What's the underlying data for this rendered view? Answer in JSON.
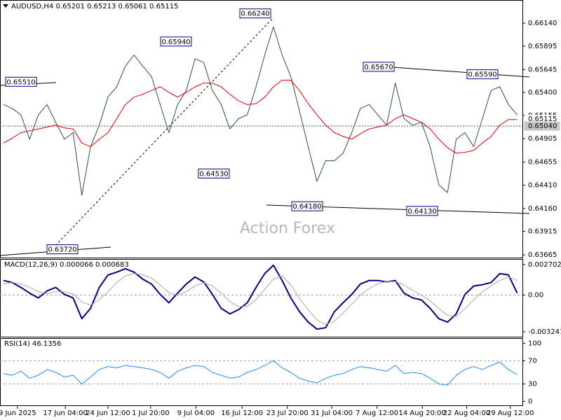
{
  "chart_data": [
    {
      "type": "line",
      "title": "AUDUSD,H4 0.65201 0.65213 0.65061 0.65115",
      "watermark": "Action Forex",
      "xlim": [
        -0.4,
        59.6
      ],
      "ylim": [
        0.63635,
        0.6638
      ],
      "yticks": [
        {
          "value": 0.6614,
          "label": "0.66140"
        },
        {
          "value": 0.65895,
          "label": "0.65895"
        },
        {
          "value": 0.65645,
          "label": "0.65645"
        },
        {
          "value": 0.654,
          "label": "0.65400"
        },
        {
          "value": 0.65155,
          "label": "0.65155"
        },
        {
          "value": 0.64905,
          "label": "0.64905"
        },
        {
          "value": 0.64655,
          "label": "0.64655"
        },
        {
          "value": 0.6441,
          "label": "0.64410"
        },
        {
          "value": 0.6416,
          "label": "0.64160"
        },
        {
          "value": 0.63915,
          "label": "0.63915"
        },
        {
          "value": 0.63665,
          "label": "0.63665"
        }
      ],
      "price_markers": [
        {
          "value": 0.65115,
          "label": "0.65115"
        },
        {
          "value": 0.6504,
          "label": "0.65040"
        }
      ],
      "annotations": [
        {
          "value": 0.6551,
          "label": "0.65510"
        },
        {
          "value": 0.6594,
          "label": "0.65940"
        },
        {
          "value": 0.6624,
          "label": "0.66240"
        },
        {
          "value": 0.6453,
          "label": "0.64530"
        },
        {
          "value": 0.6372,
          "label": "0.63720"
        },
        {
          "value": 0.6418,
          "label": "0.64180"
        },
        {
          "value": 0.6567,
          "label": "0.65670"
        },
        {
          "value": 0.6559,
          "label": "0.65590"
        },
        {
          "value": 0.6413,
          "label": "0.64130"
        }
      ],
      "series": [
        {
          "name": "AUDUSD",
          "color": "#2f4f4f",
          "values": [
            0.6527,
            0.6523,
            0.6516,
            0.649,
            0.6516,
            0.6527,
            0.6508,
            0.649,
            0.6497,
            0.643,
            0.6482,
            0.6505,
            0.6535,
            0.6546,
            0.6568,
            0.658,
            0.6568,
            0.6557,
            0.6527,
            0.6497,
            0.6527,
            0.6542,
            0.6576,
            0.6572,
            0.6542,
            0.6527,
            0.6501,
            0.6512,
            0.6516,
            0.6546,
            0.658,
            0.661,
            0.658,
            0.6557,
            0.652,
            0.6482,
            0.6445,
            0.6467,
            0.6467,
            0.6475,
            0.6497,
            0.6523,
            0.6527,
            0.6516,
            0.6505,
            0.655,
            0.6512,
            0.6505,
            0.6508,
            0.6482,
            0.6441,
            0.6433,
            0.649,
            0.6497,
            0.6482,
            0.6512,
            0.6542,
            0.6546,
            0.6527,
            0.6516
          ]
        },
        {
          "name": "MA",
          "color": "#e00000",
          "values": [
            0.6486,
            0.6491,
            0.6497,
            0.6499,
            0.6501,
            0.6503,
            0.6505,
            0.6502,
            0.6501,
            0.6486,
            0.6482,
            0.649,
            0.6497,
            0.6512,
            0.6527,
            0.6535,
            0.6538,
            0.6542,
            0.6546,
            0.654,
            0.6535,
            0.654,
            0.6546,
            0.655,
            0.655,
            0.6546,
            0.6538,
            0.6531,
            0.6527,
            0.6528,
            0.6535,
            0.6546,
            0.6553,
            0.6553,
            0.6542,
            0.6528,
            0.6516,
            0.6505,
            0.6497,
            0.6493,
            0.649,
            0.6496,
            0.6501,
            0.6503,
            0.6505,
            0.6512,
            0.6516,
            0.6512,
            0.6508,
            0.6501,
            0.649,
            0.6481,
            0.6475,
            0.6476,
            0.6478,
            0.6486,
            0.6493,
            0.6505,
            0.6511,
            0.6511
          ]
        }
      ]
    },
    {
      "type": "line",
      "title": "MACD(12,26,9) 0.000066 0.000683",
      "xlim": [
        -0.4,
        59.6
      ],
      "ylim": [
        -0.00368,
        0.00313
      ],
      "yticks": [
        0.002702,
        {
          "value": 0,
          "label": "0.00"
        },
        -0.003241
      ],
      "levels": [
        0
      ],
      "series": [
        {
          "name": "MACD",
          "color": "#000080",
          "values": [
            0.00129,
            0.00111,
            0.00068,
            0.00018,
            -0.00025,
            0.00037,
            0.00068,
            6e-05,
            -0.00025,
            -0.00209,
            -0.00117,
            0.00068,
            0.00178,
            0.00203,
            0.00233,
            0.00203,
            0.00141,
            0.00098,
            6e-05,
            -0.00068,
            0.00018,
            0.00098,
            0.0016,
            0.00117,
            6e-05,
            -0.00117,
            -0.00166,
            -0.00129,
            -0.00068,
            0.00068,
            0.0019,
            0.00264,
            0.00129,
            -0.00025,
            -0.00147,
            -0.00239,
            -0.00301,
            -0.00289,
            -0.00147,
            -0.00068,
            6e-05,
            0.00098,
            0.00129,
            0.00129,
            0.00117,
            0.00129,
            0.00018,
            -0.00025,
            -0.00043,
            -0.00117,
            -0.00209,
            -0.00239,
            -0.00166,
            6e-05,
            0.0008,
            0.00092,
            0.00111,
            0.0019,
            0.00178,
            0.00018
          ]
        },
        {
          "name": "Signal",
          "color": "#a9a9a9",
          "values": [
            0.001,
            0.0011,
            0.001,
            0.0007,
            0.0003,
            0.0001,
            0.0003,
            0.0003,
            0.0001,
            -0.0006,
            -0.0009,
            -0.0004,
            0.0003,
            0.0011,
            0.0017,
            0.0019,
            0.0018,
            0.0015,
            0.0009,
            0.0002,
            0,
            0.0003,
            0.0008,
            0.0011,
            0.0008,
            0.0002,
            -0.0006,
            -0.001,
            -0.001,
            -0.0004,
            0.0005,
            0.0014,
            0.0017,
            0.0009,
            -0.0003,
            -0.0013,
            -0.0022,
            -0.0026,
            -0.0023,
            -0.0016,
            -0.0008,
            0,
            0.0006,
            0.001,
            0.0012,
            0.0012,
            0.0009,
            0.0004,
            0,
            -0.0005,
            -0.0012,
            -0.0018,
            -0.0019,
            -0.0012,
            -0.0004,
            0.0003,
            0.0008,
            0.0013,
            0.0016,
            0.0013
          ]
        }
      ]
    },
    {
      "type": "line",
      "title": "RSI(14) 46.1356",
      "xlim": [
        -0.4,
        59.6
      ],
      "ylim": [
        -8,
        108
      ],
      "yticks": [
        100,
        70,
        30,
        0
      ],
      "levels": [
        70,
        30
      ],
      "xticks": [
        {
          "value": 1.6,
          "label": "9 Jun 2025"
        },
        {
          "value": 7.1,
          "label": "17 Jun 04:00"
        },
        {
          "value": 12,
          "label": "24 Jun 12:00"
        },
        {
          "value": 16.9,
          "label": "1 Jul 20:00"
        },
        {
          "value": 22.1,
          "label": "9 Jul 04:00"
        },
        {
          "value": 27.4,
          "label": "16 Jul 12:00"
        },
        {
          "value": 32.6,
          "label": "23 Jul 20:00"
        },
        {
          "value": 37.7,
          "label": "31 Jul 04:00"
        },
        {
          "value": 42.9,
          "label": "7 Aug 12:00"
        },
        {
          "value": 48.1,
          "label": "14 Aug 20:00"
        },
        {
          "value": 53.2,
          "label": "22 Aug 04:00"
        },
        {
          "value": 58.2,
          "label": "29 Aug 12:00"
        }
      ],
      "series": [
        {
          "name": "RSI",
          "color": "#1e90ff",
          "values": [
            48,
            45,
            52,
            40,
            45,
            55,
            50,
            42,
            45,
            30,
            42,
            55,
            60,
            58,
            62,
            60,
            58,
            55,
            50,
            40,
            52,
            58,
            62,
            60,
            50,
            45,
            40,
            42,
            50,
            55,
            62,
            70,
            58,
            50,
            40,
            35,
            32,
            40,
            45,
            48,
            55,
            60,
            58,
            55,
            52,
            62,
            48,
            50,
            48,
            40,
            30,
            28,
            45,
            55,
            60,
            55,
            62,
            68,
            55,
            46
          ]
        }
      ]
    }
  ]
}
